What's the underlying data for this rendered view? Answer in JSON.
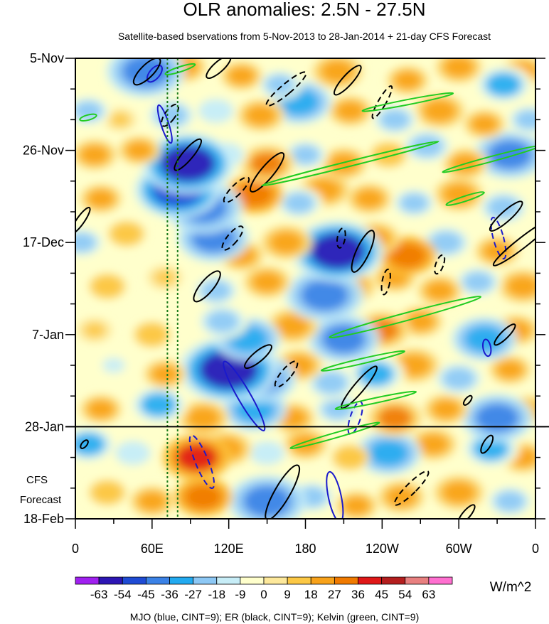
{
  "chart_data": {
    "type": "heatmap",
    "title": "OLR anomalies: 2.5N - 27.5N",
    "subtitle": "Satellite-based bservations from 5-Nov-2013 to 28-Jan-2014 + 21-day CFS Forecast",
    "x_ticks": [
      "0",
      "60E",
      "120E",
      "180",
      "120W",
      "60W",
      "0"
    ],
    "x_tick_lon": [
      0,
      60,
      120,
      180,
      240,
      300,
      360
    ],
    "y_ticks": [
      "5-Nov",
      "26-Nov",
      "17-Dec",
      "7-Jan",
      "28-Jan",
      "18-Feb"
    ],
    "y_tick_day": [
      0,
      21,
      42,
      63,
      84,
      105
    ],
    "forecast_start_day": 84,
    "forecast_label": [
      "CFS",
      "Forecast"
    ],
    "reference_lon": [
      72,
      80
    ],
    "colorbar": {
      "unit": "W/m^2",
      "labels": [
        "-63",
        "-54",
        "-45",
        "-36",
        "-27",
        "-18",
        "-9",
        "0",
        "9",
        "18",
        "27",
        "36",
        "45",
        "54",
        "63"
      ],
      "colors": [
        "#a020f0",
        "#2d16b4",
        "#1f4bd4",
        "#3b82e6",
        "#22aaf0",
        "#8dc8f5",
        "#c7edf7",
        "#ffffcc",
        "#fde89b",
        "#fcc845",
        "#f8a21a",
        "#f07a00",
        "#e01818",
        "#b41e1e",
        "#e88080",
        "#ff70d0"
      ]
    },
    "footer": "MJO (blue, CINT=9); ER (black, CINT=9); Kelvin (green, CINT=9)",
    "contour_colors": {
      "mjo": "#1a1acc",
      "er": "#000000",
      "kelvin": "#22cc22"
    },
    "anomaly_blobs": [
      {
        "lon": 55,
        "day": 3,
        "val": -45
      },
      {
        "lon": 85,
        "day": 2,
        "val": 20
      },
      {
        "lon": 130,
        "day": 4,
        "val": 18
      },
      {
        "lon": 160,
        "day": 6,
        "val": -20
      },
      {
        "lon": 205,
        "day": 3,
        "val": 25
      },
      {
        "lon": 260,
        "day": 5,
        "val": 18
      },
      {
        "lon": 300,
        "day": 2,
        "val": 22
      },
      {
        "lon": 335,
        "day": 6,
        "val": -30
      },
      {
        "lon": 350,
        "day": 3,
        "val": 20
      },
      {
        "lon": 10,
        "day": 12,
        "val": -20
      },
      {
        "lon": 35,
        "day": 14,
        "val": 10
      },
      {
        "lon": 75,
        "day": 13,
        "val": -25
      },
      {
        "lon": 110,
        "day": 12,
        "val": -18
      },
      {
        "lon": 145,
        "day": 13,
        "val": 22
      },
      {
        "lon": 175,
        "day": 10,
        "val": -35
      },
      {
        "lon": 215,
        "day": 12,
        "val": 20
      },
      {
        "lon": 250,
        "day": 14,
        "val": -22
      },
      {
        "lon": 285,
        "day": 12,
        "val": 25
      },
      {
        "lon": 320,
        "day": 15,
        "val": 18
      },
      {
        "lon": 355,
        "day": 14,
        "val": -20
      },
      {
        "lon": 15,
        "day": 22,
        "val": 20
      },
      {
        "lon": 50,
        "day": 21,
        "val": 18
      },
      {
        "lon": 88,
        "day": 24,
        "val": -55
      },
      {
        "lon": 118,
        "day": 22,
        "val": -18
      },
      {
        "lon": 150,
        "day": 24,
        "val": 28
      },
      {
        "lon": 180,
        "day": 22,
        "val": -20
      },
      {
        "lon": 210,
        "day": 24,
        "val": 22
      },
      {
        "lon": 245,
        "day": 22,
        "val": 15
      },
      {
        "lon": 275,
        "day": 20,
        "val": -25
      },
      {
        "lon": 305,
        "day": 24,
        "val": 20
      },
      {
        "lon": 340,
        "day": 22,
        "val": -40
      },
      {
        "lon": 20,
        "day": 32,
        "val": 18
      },
      {
        "lon": 80,
        "day": 30,
        "val": -50
      },
      {
        "lon": 100,
        "day": 34,
        "val": -45
      },
      {
        "lon": 140,
        "day": 31,
        "val": 30
      },
      {
        "lon": 175,
        "day": 33,
        "val": -22
      },
      {
        "lon": 195,
        "day": 30,
        "val": 25
      },
      {
        "lon": 230,
        "day": 32,
        "val": 20
      },
      {
        "lon": 265,
        "day": 33,
        "val": -20
      },
      {
        "lon": 300,
        "day": 31,
        "val": 24
      },
      {
        "lon": 335,
        "day": 34,
        "val": -25
      },
      {
        "lon": 5,
        "day": 42,
        "val": -20
      },
      {
        "lon": 40,
        "day": 40,
        "val": 15
      },
      {
        "lon": 108,
        "day": 41,
        "val": -40
      },
      {
        "lon": 130,
        "day": 45,
        "val": 20
      },
      {
        "lon": 165,
        "day": 42,
        "val": 25
      },
      {
        "lon": 205,
        "day": 44,
        "val": -55
      },
      {
        "lon": 235,
        "day": 41,
        "val": 22
      },
      {
        "lon": 260,
        "day": 45,
        "val": 30
      },
      {
        "lon": 290,
        "day": 42,
        "val": -25
      },
      {
        "lon": 330,
        "day": 44,
        "val": 20
      },
      {
        "lon": 25,
        "day": 52,
        "val": 15
      },
      {
        "lon": 70,
        "day": 50,
        "val": 12
      },
      {
        "lon": 110,
        "day": 53,
        "val": -22
      },
      {
        "lon": 150,
        "day": 51,
        "val": 22
      },
      {
        "lon": 195,
        "day": 54,
        "val": -45
      },
      {
        "lon": 215,
        "day": 52,
        "val": 25
      },
      {
        "lon": 250,
        "day": 50,
        "val": 18
      },
      {
        "lon": 285,
        "day": 53,
        "val": 20
      },
      {
        "lon": 315,
        "day": 51,
        "val": -22
      },
      {
        "lon": 350,
        "day": 52,
        "val": 24
      },
      {
        "lon": 15,
        "day": 62,
        "val": 12
      },
      {
        "lon": 60,
        "day": 63,
        "val": 15
      },
      {
        "lon": 115,
        "day": 60,
        "val": -25
      },
      {
        "lon": 135,
        "day": 64,
        "val": -35
      },
      {
        "lon": 170,
        "day": 61,
        "val": 25
      },
      {
        "lon": 210,
        "day": 64,
        "val": -40
      },
      {
        "lon": 240,
        "day": 62,
        "val": 28
      },
      {
        "lon": 270,
        "day": 60,
        "val": 20
      },
      {
        "lon": 320,
        "day": 64,
        "val": -35
      },
      {
        "lon": 345,
        "day": 62,
        "val": 20
      },
      {
        "lon": 30,
        "day": 70,
        "val": -15
      },
      {
        "lon": 70,
        "day": 72,
        "val": 18
      },
      {
        "lon": 120,
        "day": 71,
        "val": -60
      },
      {
        "lon": 145,
        "day": 73,
        "val": -40
      },
      {
        "lon": 175,
        "day": 70,
        "val": 22
      },
      {
        "lon": 200,
        "day": 74,
        "val": -25
      },
      {
        "lon": 235,
        "day": 72,
        "val": -30
      },
      {
        "lon": 265,
        "day": 70,
        "val": 25
      },
      {
        "lon": 300,
        "day": 73,
        "val": -25
      },
      {
        "lon": 340,
        "day": 71,
        "val": 18
      },
      {
        "lon": 20,
        "day": 80,
        "val": 18
      },
      {
        "lon": 65,
        "day": 79,
        "val": -30
      },
      {
        "lon": 100,
        "day": 82,
        "val": 25
      },
      {
        "lon": 140,
        "day": 80,
        "val": -35
      },
      {
        "lon": 170,
        "day": 82,
        "val": 20
      },
      {
        "lon": 205,
        "day": 80,
        "val": -22
      },
      {
        "lon": 250,
        "day": 82,
        "val": 28
      },
      {
        "lon": 290,
        "day": 80,
        "val": 20
      },
      {
        "lon": 330,
        "day": 82,
        "val": -40
      },
      {
        "lon": 355,
        "day": 80,
        "val": 15
      },
      {
        "lon": 10,
        "day": 88,
        "val": -28
      },
      {
        "lon": 45,
        "day": 90,
        "val": -18
      },
      {
        "lon": 95,
        "day": 91,
        "val": 38
      },
      {
        "lon": 118,
        "day": 89,
        "val": 25
      },
      {
        "lon": 150,
        "day": 90,
        "val": -18
      },
      {
        "lon": 180,
        "day": 88,
        "val": 20
      },
      {
        "lon": 215,
        "day": 91,
        "val": 15
      },
      {
        "lon": 245,
        "day": 90,
        "val": -35
      },
      {
        "lon": 280,
        "day": 88,
        "val": 22
      },
      {
        "lon": 325,
        "day": 89,
        "val": -30
      },
      {
        "lon": 350,
        "day": 91,
        "val": 20
      },
      {
        "lon": 25,
        "day": 99,
        "val": 15
      },
      {
        "lon": 60,
        "day": 101,
        "val": 20
      },
      {
        "lon": 100,
        "day": 100,
        "val": 30
      },
      {
        "lon": 150,
        "day": 101,
        "val": -45
      },
      {
        "lon": 185,
        "day": 100,
        "val": -22
      },
      {
        "lon": 220,
        "day": 102,
        "val": 18
      },
      {
        "lon": 255,
        "day": 100,
        "val": 22
      },
      {
        "lon": 300,
        "day": 99,
        "val": 25
      },
      {
        "lon": 340,
        "day": 101,
        "val": -22
      }
    ],
    "contours": [
      {
        "kind": "mjo",
        "lon": 62,
        "day": 3.5,
        "rx": 4,
        "ry": 14,
        "rot": 40,
        "dash": false
      },
      {
        "kind": "mjo",
        "lon": 70,
        "day": 15,
        "rx": 3,
        "ry": 28,
        "rot": -18,
        "dash": false
      },
      {
        "kind": "mjo",
        "lon": 132,
        "day": 77,
        "rx": 5,
        "ry": 56,
        "rot": -30,
        "dash": false
      },
      {
        "kind": "mjo",
        "lon": 99,
        "day": 92,
        "rx": 5,
        "ry": 40,
        "rot": -22,
        "dash": true
      },
      {
        "kind": "mjo",
        "lon": 203,
        "day": 100,
        "rx": 5,
        "ry": 36,
        "rot": -12,
        "dash": false
      },
      {
        "kind": "mjo",
        "lon": 219,
        "day": 82,
        "rx": 4,
        "ry": 24,
        "rot": 18,
        "dash": true
      },
      {
        "kind": "mjo",
        "lon": 331,
        "day": 41,
        "rx": 4,
        "ry": 30,
        "rot": -15,
        "dash": true
      },
      {
        "kind": "mjo",
        "lon": 322,
        "day": 66,
        "rx": 3,
        "ry": 12,
        "rot": -10,
        "dash": false
      },
      {
        "kind": "er",
        "lon": 56,
        "day": 3,
        "rx": 5,
        "ry": 25,
        "rot": 45,
        "dash": false
      },
      {
        "kind": "er",
        "lon": 74,
        "day": 13,
        "rx": 4,
        "ry": 18,
        "rot": 35,
        "dash": true
      },
      {
        "kind": "er",
        "lon": 112,
        "day": 2,
        "rx": 4,
        "ry": 22,
        "rot": 48,
        "dash": false
      },
      {
        "kind": "er",
        "lon": 88,
        "day": 22,
        "rx": 4,
        "ry": 28,
        "rot": 40,
        "dash": false
      },
      {
        "kind": "er",
        "lon": 165,
        "day": 7,
        "rx": 4,
        "ry": 36,
        "rot": 50,
        "dash": true
      },
      {
        "kind": "er",
        "lon": 213,
        "day": 5,
        "rx": 4,
        "ry": 27,
        "rot": 42,
        "dash": false
      },
      {
        "kind": "er",
        "lon": 240,
        "day": 10,
        "rx": 3,
        "ry": 26,
        "rot": 30,
        "dash": true
      },
      {
        "kind": "er",
        "lon": 126,
        "day": 30,
        "rx": 4,
        "ry": 24,
        "rot": 45,
        "dash": true
      },
      {
        "kind": "er",
        "lon": 150,
        "day": 26,
        "rx": 5,
        "ry": 35,
        "rot": 40,
        "dash": false
      },
      {
        "kind": "er",
        "lon": 123,
        "day": 41,
        "rx": 4,
        "ry": 21,
        "rot": 40,
        "dash": true
      },
      {
        "kind": "er",
        "lon": 103,
        "day": 52,
        "rx": 5,
        "ry": 27,
        "rot": 40,
        "dash": false
      },
      {
        "kind": "er",
        "lon": 225,
        "day": 44,
        "rx": 5,
        "ry": 32,
        "rot": 25,
        "dash": false
      },
      {
        "kind": "er",
        "lon": 208,
        "day": 41,
        "rx": 3,
        "ry": 14,
        "rot": 10,
        "dash": true
      },
      {
        "kind": "er",
        "lon": 243,
        "day": 51,
        "rx": 3,
        "ry": 18,
        "rot": 10,
        "dash": true
      },
      {
        "kind": "er",
        "lon": 143,
        "day": 68,
        "rx": 4,
        "ry": 24,
        "rot": 50,
        "dash": false
      },
      {
        "kind": "er",
        "lon": 165,
        "day": 72,
        "rx": 4,
        "ry": 23,
        "rot": 40,
        "dash": true
      },
      {
        "kind": "er",
        "lon": 222,
        "day": 75,
        "rx": 4,
        "ry": 38,
        "rot": 40,
        "dash": false
      },
      {
        "kind": "er",
        "lon": 285,
        "day": 47,
        "rx": 3,
        "ry": 14,
        "rot": 20,
        "dash": true
      },
      {
        "kind": "er",
        "lon": 337,
        "day": 36,
        "rx": 4,
        "ry": 30,
        "rot": 48,
        "dash": false
      },
      {
        "kind": "er",
        "lon": 350,
        "day": 42,
        "rx": 4,
        "ry": 52,
        "rot": 52,
        "dash": false
      },
      {
        "kind": "er",
        "lon": 336,
        "day": 63,
        "rx": 3,
        "ry": 20,
        "rot": 45,
        "dash": false
      },
      {
        "kind": "er",
        "lon": 162,
        "day": 99,
        "rx": 6,
        "ry": 44,
        "rot": 30,
        "dash": false
      },
      {
        "kind": "er",
        "lon": 263,
        "day": 98,
        "rx": 4,
        "ry": 33,
        "rot": 45,
        "dash": true
      },
      {
        "kind": "er",
        "lon": 307,
        "day": 78,
        "rx": 2,
        "ry": 8,
        "rot": 40,
        "dash": false
      },
      {
        "kind": "er",
        "lon": 306,
        "day": 104,
        "rx": 3,
        "ry": 17,
        "rot": 40,
        "dash": false
      },
      {
        "kind": "er",
        "lon": 322,
        "day": 88,
        "rx": 3,
        "ry": 14,
        "rot": 30,
        "dash": false
      },
      {
        "kind": "er",
        "lon": 7,
        "day": 88,
        "rx": 2,
        "ry": 7,
        "rot": 40,
        "dash": false
      },
      {
        "kind": "er",
        "lon": 4,
        "day": 37,
        "rx": 3,
        "ry": 22,
        "rot": 35,
        "dash": false
      },
      {
        "kind": "kelvin",
        "lon": 260,
        "day": 10,
        "rx": 2,
        "ry": 65,
        "rot": 79,
        "dash": false
      },
      {
        "kind": "kelvin",
        "lon": 215,
        "day": 24,
        "rx": 2,
        "ry": 128,
        "rot": 76,
        "dash": false
      },
      {
        "kind": "kelvin",
        "lon": 325,
        "day": 23,
        "rx": 2,
        "ry": 70,
        "rot": 75,
        "dash": false
      },
      {
        "kind": "kelvin",
        "lon": 258,
        "day": 59,
        "rx": 3,
        "ry": 110,
        "rot": 75,
        "dash": false
      },
      {
        "kind": "kelvin",
        "lon": 225,
        "day": 69,
        "rx": 2,
        "ry": 60,
        "rot": 77,
        "dash": false
      },
      {
        "kind": "kelvin",
        "lon": 235,
        "day": 78,
        "rx": 2,
        "ry": 58,
        "rot": 78,
        "dash": false
      },
      {
        "kind": "kelvin",
        "lon": 203,
        "day": 86,
        "rx": 2,
        "ry": 65,
        "rot": 74,
        "dash": false
      },
      {
        "kind": "kelvin",
        "lon": 305,
        "day": 32,
        "rx": 2,
        "ry": 28,
        "rot": 72,
        "dash": false
      },
      {
        "kind": "kelvin",
        "lon": 82,
        "day": 2.5,
        "rx": 2,
        "ry": 22,
        "rot": 72,
        "dash": false
      },
      {
        "kind": "kelvin",
        "lon": 10,
        "day": 13.5,
        "rx": 2,
        "ry": 12,
        "rot": 75,
        "dash": false
      }
    ]
  }
}
